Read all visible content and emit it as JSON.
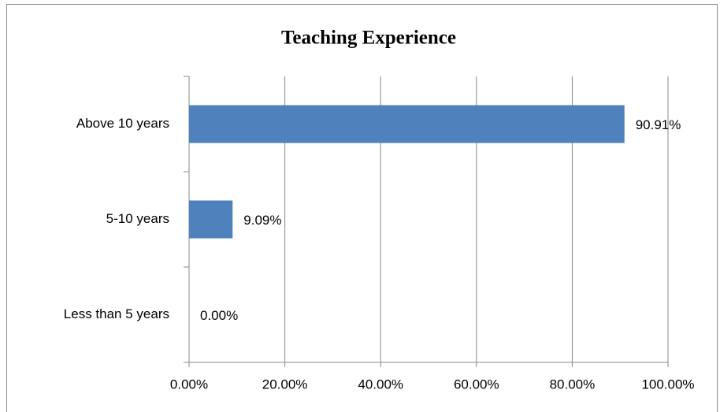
{
  "chart_data": {
    "type": "barh",
    "title": "Teaching Experience",
    "categories": [
      "Above 10 years",
      "5-10 years",
      "Less than 5 years"
    ],
    "values": [
      90.91,
      9.09,
      0
    ],
    "value_labels": [
      "90.91%",
      "9.09%",
      "0.00%"
    ],
    "color": "#4f81bd",
    "xlim": [
      0,
      100
    ],
    "xticks": [
      {
        "value": 0,
        "label": "0.00%"
      },
      {
        "value": 20,
        "label": "20.00%"
      },
      {
        "value": 40,
        "label": "40.00%"
      },
      {
        "value": 60,
        "label": "60.00%"
      },
      {
        "value": 80,
        "label": "80.00%"
      },
      {
        "value": 100,
        "label": "100.00%"
      }
    ],
    "grid": true
  }
}
